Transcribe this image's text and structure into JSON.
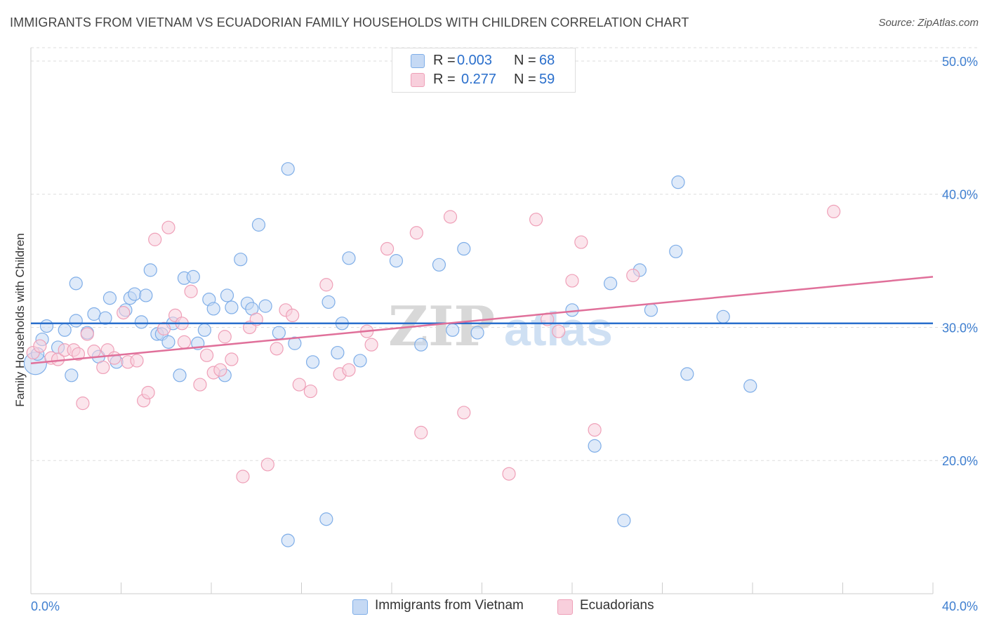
{
  "title": "IMMIGRANTS FROM VIETNAM VS ECUADORIAN FAMILY HOUSEHOLDS WITH CHILDREN CORRELATION CHART",
  "source": "Source: ZipAtlas.com",
  "watermark": {
    "zip": "ZIP",
    "atlas": "atlas"
  },
  "legend": {
    "r_label": "R =",
    "n_label": "N =",
    "rows": [
      {
        "r": "0.003",
        "n": "68"
      },
      {
        "r": "0.277",
        "n": "59"
      }
    ]
  },
  "chart_data": {
    "type": "scatter",
    "xlabel": "",
    "ylabel": "Family Households with Children",
    "xlim": [
      0,
      40
    ],
    "ylim": [
      10,
      51
    ],
    "x_tick_labels": [
      "0.0%",
      "40.0%"
    ],
    "y_tick_values": [
      20,
      30,
      40,
      50
    ],
    "y_tick_labels": [
      "20.0%",
      "30.0%",
      "40.0%",
      "50.0%"
    ],
    "grid": true,
    "legend_position": "top-center",
    "series": [
      {
        "name": "Immigrants from Vietnam",
        "color": "#7faee8",
        "fill": "#c5d9f4",
        "line_color": "#2a6fcc",
        "trend": {
          "x": [
            0,
            40
          ],
          "y": [
            30.3,
            30.3
          ]
        },
        "points": [
          [
            0.2,
            27.3
          ],
          [
            0.3,
            28.0
          ],
          [
            0.5,
            29.1
          ],
          [
            0.7,
            30.1
          ],
          [
            1.2,
            28.5
          ],
          [
            1.5,
            29.8
          ],
          [
            1.8,
            26.4
          ],
          [
            2.0,
            30.5
          ],
          [
            2.0,
            33.3
          ],
          [
            2.5,
            29.6
          ],
          [
            2.8,
            31.0
          ],
          [
            3.0,
            27.8
          ],
          [
            3.3,
            30.7
          ],
          [
            3.5,
            32.2
          ],
          [
            3.8,
            27.4
          ],
          [
            4.2,
            31.3
          ],
          [
            4.4,
            32.2
          ],
          [
            4.6,
            32.5
          ],
          [
            4.9,
            30.4
          ],
          [
            5.1,
            32.4
          ],
          [
            5.3,
            34.3
          ],
          [
            5.6,
            29.5
          ],
          [
            5.8,
            29.5
          ],
          [
            6.1,
            28.9
          ],
          [
            6.3,
            30.3
          ],
          [
            6.6,
            26.4
          ],
          [
            6.8,
            33.7
          ],
          [
            7.2,
            33.8
          ],
          [
            7.4,
            28.8
          ],
          [
            7.7,
            29.8
          ],
          [
            7.9,
            32.1
          ],
          [
            8.1,
            31.4
          ],
          [
            8.6,
            26.4
          ],
          [
            8.7,
            32.4
          ],
          [
            8.9,
            31.5
          ],
          [
            9.3,
            35.1
          ],
          [
            9.6,
            31.8
          ],
          [
            9.8,
            31.4
          ],
          [
            10.1,
            37.7
          ],
          [
            10.4,
            31.6
          ],
          [
            11.0,
            29.6
          ],
          [
            11.4,
            14.0
          ],
          [
            11.4,
            41.9
          ],
          [
            11.7,
            28.8
          ],
          [
            12.5,
            27.4
          ],
          [
            13.1,
            15.6
          ],
          [
            13.2,
            31.9
          ],
          [
            13.6,
            28.1
          ],
          [
            13.8,
            30.3
          ],
          [
            14.1,
            35.2
          ],
          [
            14.6,
            27.5
          ],
          [
            16.2,
            35.0
          ],
          [
            17.3,
            28.7
          ],
          [
            18.1,
            34.7
          ],
          [
            18.7,
            29.8
          ],
          [
            19.2,
            35.9
          ],
          [
            19.8,
            29.6
          ],
          [
            24.0,
            31.3
          ],
          [
            25.0,
            21.1
          ],
          [
            25.7,
            33.3
          ],
          [
            26.3,
            15.5
          ],
          [
            27.0,
            34.3
          ],
          [
            27.5,
            31.3
          ],
          [
            28.6,
            35.7
          ],
          [
            28.7,
            40.9
          ],
          [
            29.1,
            26.5
          ],
          [
            30.7,
            30.8
          ],
          [
            31.9,
            25.6
          ]
        ]
      },
      {
        "name": "Ecuadorians",
        "color": "#efa0b8",
        "fill": "#f8cfdc",
        "line_color": "#e0709a",
        "trend": {
          "x": [
            0,
            40
          ],
          "y": [
            27.3,
            33.8
          ]
        },
        "points": [
          [
            0.1,
            28.1
          ],
          [
            0.4,
            28.6
          ],
          [
            0.9,
            27.7
          ],
          [
            1.2,
            27.6
          ],
          [
            1.5,
            28.3
          ],
          [
            1.9,
            28.3
          ],
          [
            2.1,
            28.0
          ],
          [
            2.3,
            24.3
          ],
          [
            2.5,
            29.5
          ],
          [
            2.8,
            28.2
          ],
          [
            3.2,
            27.0
          ],
          [
            3.4,
            28.3
          ],
          [
            3.7,
            27.7
          ],
          [
            4.1,
            31.1
          ],
          [
            4.3,
            27.4
          ],
          [
            4.7,
            27.5
          ],
          [
            5.0,
            24.5
          ],
          [
            5.2,
            25.1
          ],
          [
            5.5,
            36.6
          ],
          [
            5.9,
            29.9
          ],
          [
            6.1,
            37.5
          ],
          [
            6.4,
            30.9
          ],
          [
            6.7,
            30.3
          ],
          [
            6.8,
            28.9
          ],
          [
            7.1,
            32.7
          ],
          [
            7.5,
            25.7
          ],
          [
            7.8,
            27.9
          ],
          [
            8.1,
            26.6
          ],
          [
            8.4,
            26.8
          ],
          [
            8.6,
            29.3
          ],
          [
            8.9,
            27.6
          ],
          [
            9.4,
            18.8
          ],
          [
            9.7,
            30.0
          ],
          [
            10.0,
            30.6
          ],
          [
            10.5,
            19.7
          ],
          [
            10.9,
            28.4
          ],
          [
            11.3,
            31.3
          ],
          [
            11.6,
            30.9
          ],
          [
            11.9,
            25.7
          ],
          [
            12.4,
            25.2
          ],
          [
            13.1,
            33.2
          ],
          [
            13.7,
            26.5
          ],
          [
            14.1,
            26.8
          ],
          [
            14.9,
            29.7
          ],
          [
            15.1,
            28.7
          ],
          [
            15.8,
            35.9
          ],
          [
            17.1,
            37.1
          ],
          [
            17.3,
            22.1
          ],
          [
            18.6,
            38.3
          ],
          [
            19.2,
            23.6
          ],
          [
            21.2,
            19.0
          ],
          [
            22.4,
            38.1
          ],
          [
            22.9,
            30.6
          ],
          [
            23.4,
            29.7
          ],
          [
            24.0,
            33.5
          ],
          [
            24.4,
            36.4
          ],
          [
            25.0,
            22.3
          ],
          [
            26.7,
            33.9
          ],
          [
            35.6,
            38.7
          ]
        ]
      }
    ]
  },
  "bottom_legend": [
    "Immigrants from Vietnam",
    "Ecuadorians"
  ]
}
